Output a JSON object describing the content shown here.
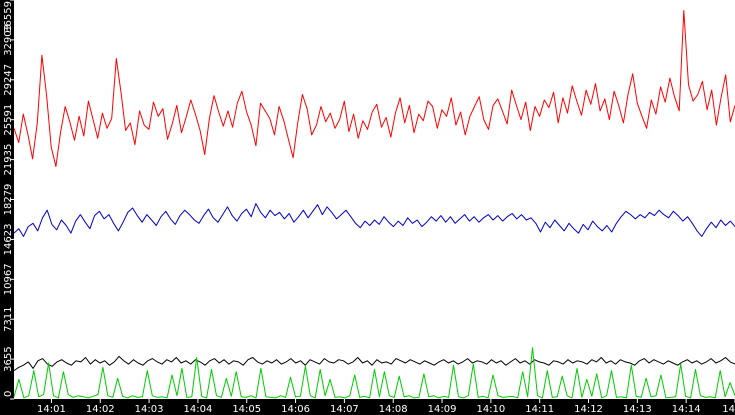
{
  "chart_data": {
    "type": "line",
    "title": "",
    "xlabel": "",
    "ylabel": "",
    "background": "#ffffff",
    "axis_color": "#000000",
    "axis_label_color": "#ffffff",
    "grid": false,
    "legend": "none",
    "xlim": [
      "14:00:14",
      "14:15:00"
    ],
    "ylim": [
      0,
      36559
    ],
    "y_ticks": [
      "0",
      "3655",
      "7311",
      "10967",
      "14623",
      "18279",
      "21935",
      "25591",
      "29247",
      "32903",
      "36559"
    ],
    "x_ticks": [
      "14:01",
      "14:02",
      "14:03",
      "14:04",
      "14:05",
      "14:06",
      "14:07",
      "14:08",
      "14:09",
      "14:10",
      "14:11",
      "14:12",
      "14:13",
      "14:14",
      "14"
    ],
    "series": [
      {
        "color": "#ff0000",
        "x_start": "14:00:14",
        "x_end": "14:15:00",
        "values": [
          24800,
          23500,
          26100,
          24200,
          22000,
          25300,
          31500,
          27800,
          23100,
          21300,
          24400,
          26800,
          25400,
          23700,
          25900,
          24100,
          27300,
          25600,
          23900,
          26200,
          24800,
          25700,
          31200,
          28100,
          24600,
          25300,
          23300,
          26400,
          25100,
          24700,
          27200,
          25900,
          26600,
          23800,
          25200,
          26900,
          24400,
          25800,
          27400,
          26100,
          24600,
          22400,
          25700,
          27800,
          26300,
          25000,
          26400,
          24900,
          27100,
          28200,
          26300,
          25100,
          23200,
          27100,
          26400,
          25700,
          24200,
          26800,
          25500,
          23800,
          22100,
          25300,
          27900,
          26600,
          24200,
          25100,
          26800,
          25400,
          26200,
          24800,
          25600,
          27300,
          24500,
          26100,
          23900,
          25500,
          24700,
          26300,
          27000,
          24900,
          25800,
          24000,
          26200,
          27600,
          25300,
          26900,
          24400,
          26100,
          25500,
          27300,
          26800,
          24800,
          26500,
          25900,
          27600,
          25100,
          26300,
          24200,
          25900,
          26800,
          27700,
          25600,
          24700,
          26900,
          27500,
          26400,
          25200,
          28300,
          26900,
          25600,
          27200,
          24600,
          26800,
          25900,
          27400,
          26700,
          28100,
          25300,
          27600,
          26200,
          28700,
          27300,
          26000,
          28300,
          27000,
          28900,
          26400,
          27500,
          25600,
          28200,
          26900,
          25300,
          27900,
          29800,
          27100,
          25900,
          24800,
          27400,
          26100,
          28600,
          27200,
          29400,
          27700,
          26400,
          35600,
          28800,
          27300,
          27900,
          29100,
          26500,
          28300,
          25100,
          27600,
          29700,
          25400,
          26900
        ]
      },
      {
        "color": "#0000cc",
        "x_start": "14:00:14",
        "x_end": "14:15:00",
        "values": [
          15200,
          15600,
          14900,
          15800,
          16100,
          15400,
          16600,
          17300,
          16000,
          15500,
          16400,
          15900,
          15200,
          16300,
          16900,
          16200,
          15600,
          16800,
          17200,
          16500,
          16900,
          16100,
          15400,
          16200,
          17100,
          17500,
          16800,
          16200,
          16900,
          16400,
          15900,
          16700,
          17200,
          16500,
          16000,
          16800,
          17300,
          16900,
          16400,
          16100,
          16800,
          17400,
          16600,
          16200,
          16900,
          17600,
          16800,
          16300,
          17000,
          17400,
          16700,
          17900,
          17100,
          16600,
          17300,
          16800,
          17100,
          16500,
          17000,
          16200,
          16700,
          17300,
          16600,
          17200,
          17800,
          16900,
          17600,
          17100,
          16500,
          16900,
          17300,
          16700,
          16100,
          15700,
          16300,
          15900,
          16400,
          16000,
          16700,
          16200,
          15800,
          16300,
          15900,
          16600,
          16100,
          16400,
          15800,
          16200,
          16700,
          16300,
          16800,
          16200,
          16700,
          16100,
          16500,
          16900,
          16300,
          16700,
          16200,
          16600,
          16900,
          16400,
          16800,
          16300,
          16700,
          17000,
          16500,
          16900,
          16400,
          16600,
          16100,
          15300,
          16200,
          15700,
          16400,
          15900,
          15400,
          16100,
          15600,
          15200,
          16000,
          15500,
          16300,
          15800,
          15400,
          15900,
          15300,
          16100,
          16700,
          17200,
          16900,
          16500,
          16900,
          16600,
          17100,
          16800,
          17300,
          16900,
          16600,
          17200,
          16800,
          16300,
          16700,
          16100,
          15400,
          14900,
          15600,
          16200,
          15700,
          16400,
          15900,
          16300,
          15800
        ]
      },
      {
        "color": "#000000",
        "x_start": "14:00:14",
        "x_end": "14:15:00",
        "values": [
          2600,
          2900,
          3100,
          3400,
          2800,
          3500,
          3700,
          3200,
          3000,
          3400,
          3600,
          3300,
          3100,
          3500,
          3400,
          3800,
          3200,
          3600,
          3300,
          3500,
          3100,
          3400,
          3900,
          3500,
          3200,
          3600,
          3300,
          3100,
          3500,
          3700,
          3400,
          3200,
          3600,
          3400,
          3800,
          3300,
          3500,
          3200,
          3600,
          3400,
          3100,
          3500,
          3700,
          3300,
          3600,
          3200,
          3500,
          3400,
          3100,
          3600,
          3800,
          3400,
          3200,
          3500,
          3300,
          3600,
          3200,
          3400,
          3700,
          3300,
          3500,
          3100,
          3600,
          3400,
          3200,
          3700,
          3400,
          3300,
          3600,
          3500,
          3200,
          3400,
          3800,
          3300,
          3500,
          3100,
          3600,
          3300,
          3400,
          3200,
          3700,
          3500,
          3300,
          3600,
          3400,
          3200,
          3500,
          3300,
          3100,
          3400,
          3600,
          3300,
          3500,
          3200,
          3400,
          3700,
          3300,
          3500,
          3400,
          3200,
          3600,
          3300,
          3500,
          3100,
          3400,
          3700,
          3300,
          3500,
          3200,
          3600,
          3400,
          3300,
          3100,
          3500,
          3400,
          3200,
          3600,
          3300,
          3500,
          3400,
          3200,
          3600,
          3400,
          3800,
          3300,
          3500,
          3200,
          3600,
          3400,
          3300,
          3100,
          3500,
          3700,
          3300,
          3600,
          3400,
          3200,
          3500,
          3300,
          3100,
          3400,
          3600,
          3300,
          3500,
          3200,
          3400,
          3700,
          3300,
          3500,
          3800,
          3400,
          3200
        ]
      },
      {
        "color": "#00cc00",
        "x_start": "14:00:14",
        "x_end": "14:15:00",
        "values": [
          200,
          1800,
          100,
          300,
          2600,
          200,
          400,
          3300,
          300,
          100,
          2500,
          400,
          150,
          300,
          200,
          100,
          250,
          400,
          2900,
          300,
          150,
          1900,
          250,
          100,
          300,
          150,
          200,
          2600,
          300,
          150,
          200,
          100,
          2200,
          300,
          2800,
          150,
          200,
          3800,
          250,
          100,
          2700,
          300,
          150,
          1900,
          250,
          2500,
          200,
          150,
          300,
          100,
          2800,
          200,
          150,
          100,
          300,
          150,
          2000,
          200,
          250,
          3000,
          300,
          100,
          2700,
          300,
          1800,
          150,
          200,
          100,
          300,
          2200,
          150,
          250,
          100,
          2700,
          200,
          2500,
          300,
          150,
          2100,
          200,
          300,
          100,
          150,
          2300,
          200,
          300,
          100,
          250,
          150,
          3100,
          200,
          100,
          300,
          3200,
          150,
          250,
          100,
          2200,
          300,
          150,
          200,
          250,
          100,
          2500,
          200,
          4700,
          300,
          100,
          2600,
          150,
          200,
          2100,
          300,
          100,
          2800,
          150,
          1800,
          250,
          2300,
          100,
          300,
          2600,
          150,
          200,
          100,
          3100,
          250,
          150,
          1900,
          200,
          300,
          2200,
          100,
          150,
          200,
          3200,
          250,
          100,
          2700,
          300,
          150,
          200,
          100,
          2600,
          200,
          1500,
          300
        ]
      }
    ]
  }
}
